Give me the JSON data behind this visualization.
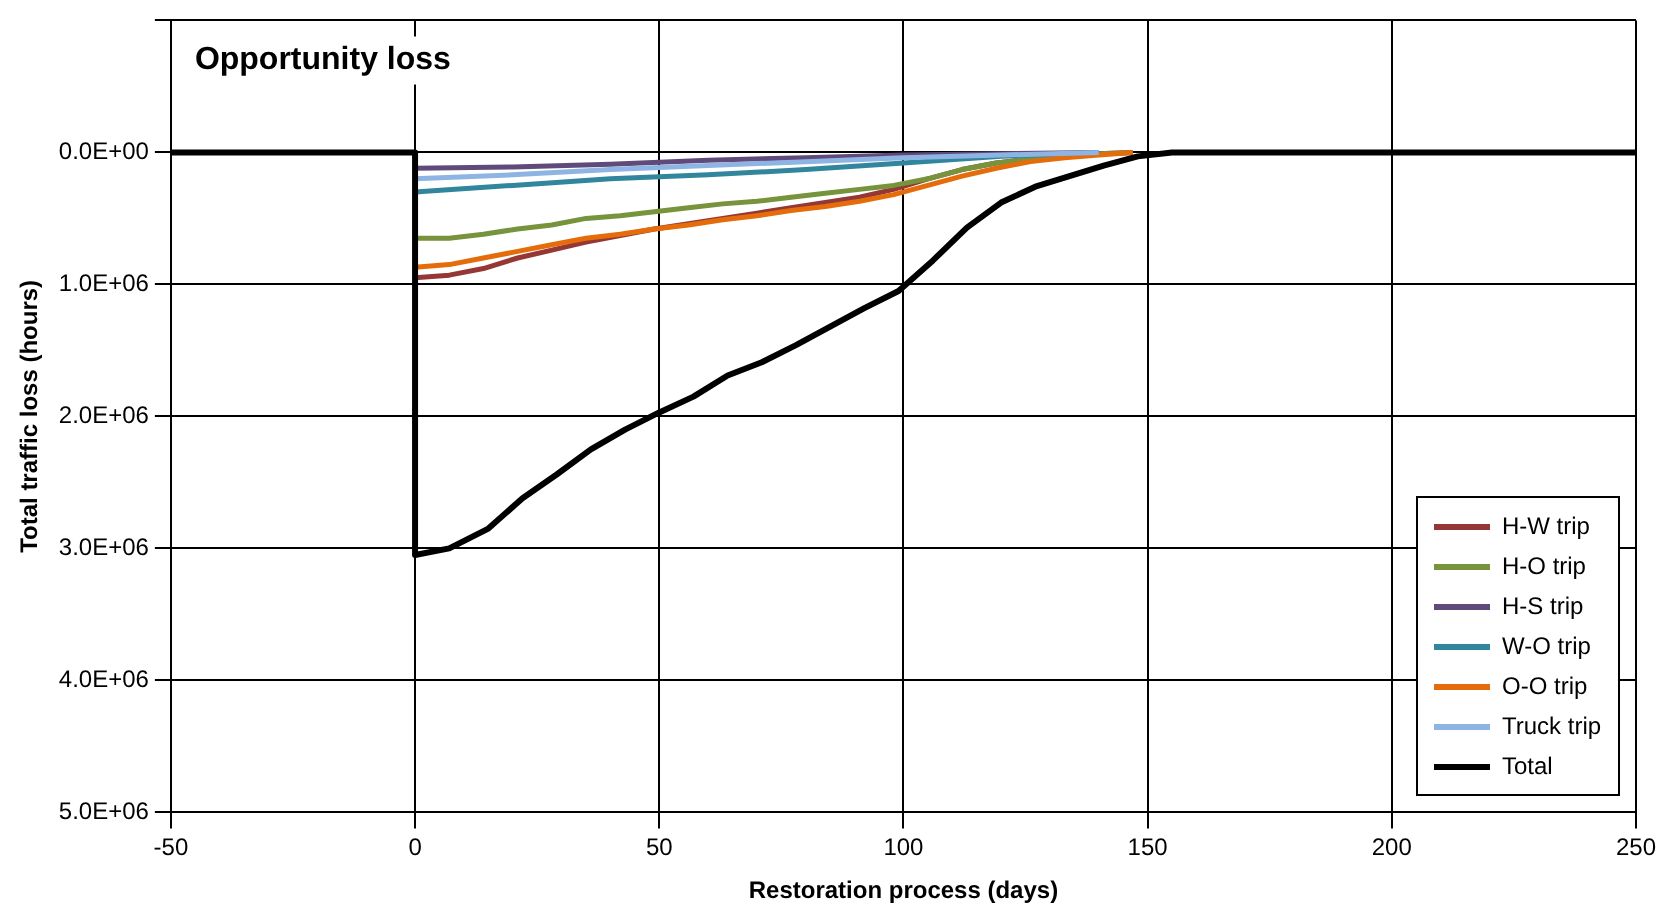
{
  "chart_data": {
    "type": "line",
    "title": "Opportunity loss",
    "xlabel": "Restoration process (days)",
    "ylabel": "Total traffic loss (hours)",
    "xlim": [
      -50,
      250
    ],
    "xticks": [
      -50,
      0,
      50,
      100,
      150,
      200,
      250
    ],
    "ylim": [
      5000000,
      -1000000
    ],
    "yticks": [
      {
        "value": -1000000,
        "label": null
      },
      {
        "value": 0,
        "label": "0.0E+00"
      },
      {
        "value": 1000000,
        "label": "1.0E+06"
      },
      {
        "value": 2000000,
        "label": "2.0E+06"
      },
      {
        "value": 3000000,
        "label": "3.0E+06"
      },
      {
        "value": 4000000,
        "label": "4.0E+06"
      },
      {
        "value": 5000000,
        "label": "5.0E+06"
      }
    ],
    "grid": true,
    "legend": "bottom right",
    "marker": "none",
    "line_style": "solid",
    "series": [
      {
        "name": "H-W trip",
        "color": "#953735",
        "x": [
          0,
          7,
          14,
          21,
          28,
          35,
          42,
          49,
          56,
          63,
          70,
          77,
          84,
          91,
          98,
          105,
          112,
          119,
          126,
          133,
          140,
          147
        ],
        "values": [
          950000,
          930000,
          880000,
          800000,
          740000,
          680000,
          630000,
          580000,
          540000,
          500000,
          460000,
          420000,
          380000,
          340000,
          280000,
          200000,
          130000,
          80000,
          50000,
          30000,
          10000,
          0
        ]
      },
      {
        "name": "H-O trip",
        "color": "#77933c",
        "x": [
          0,
          7,
          14,
          21,
          28,
          35,
          42,
          49,
          56,
          63,
          70,
          77,
          84,
          91,
          98,
          105,
          112,
          119,
          126,
          133,
          140,
          147
        ],
        "values": [
          650000,
          650000,
          620000,
          580000,
          550000,
          500000,
          480000,
          450000,
          420000,
          390000,
          370000,
          340000,
          310000,
          280000,
          250000,
          200000,
          130000,
          80000,
          50000,
          30000,
          10000,
          0
        ]
      },
      {
        "name": "H-S trip",
        "color": "#604a7b",
        "x": [
          0,
          20,
          40,
          60,
          80,
          100,
          120,
          140
        ],
        "values": [
          120000,
          110000,
          90000,
          60000,
          40000,
          20000,
          10000,
          0
        ]
      },
      {
        "name": "W-O trip",
        "color": "#31859c",
        "x": [
          0,
          20,
          40,
          60,
          80,
          100,
          120,
          140
        ],
        "values": [
          300000,
          250000,
          200000,
          170000,
          130000,
          80000,
          30000,
          0
        ]
      },
      {
        "name": "O-O trip",
        "color": "#e46c0a",
        "x": [
          0,
          7,
          14,
          21,
          28,
          35,
          42,
          49,
          56,
          63,
          70,
          77,
          84,
          91,
          98,
          105,
          112,
          119,
          126,
          133,
          140,
          147
        ],
        "values": [
          870000,
          850000,
          800000,
          750000,
          700000,
          650000,
          620000,
          580000,
          550000,
          510000,
          480000,
          440000,
          410000,
          370000,
          320000,
          250000,
          180000,
          120000,
          70000,
          40000,
          20000,
          0
        ]
      },
      {
        "name": "Truck trip",
        "color": "#8eb4e3",
        "x": [
          0,
          20,
          40,
          60,
          80,
          100,
          120,
          140
        ],
        "values": [
          200000,
          170000,
          130000,
          100000,
          70000,
          40000,
          20000,
          0
        ]
      },
      {
        "name": "Total",
        "color": "#000000",
        "x": [
          -50,
          0,
          0,
          7,
          15,
          22,
          29,
          36,
          43,
          50,
          57,
          64,
          71,
          78,
          85,
          92,
          99,
          106,
          113,
          120,
          127,
          134,
          141,
          148,
          155,
          162,
          250
        ],
        "values": [
          0,
          0,
          3050000,
          3000000,
          2850000,
          2620000,
          2440000,
          2250000,
          2100000,
          1970000,
          1850000,
          1690000,
          1590000,
          1460000,
          1320000,
          1180000,
          1050000,
          820000,
          570000,
          380000,
          260000,
          180000,
          100000,
          30000,
          0,
          0,
          0
        ]
      }
    ]
  }
}
